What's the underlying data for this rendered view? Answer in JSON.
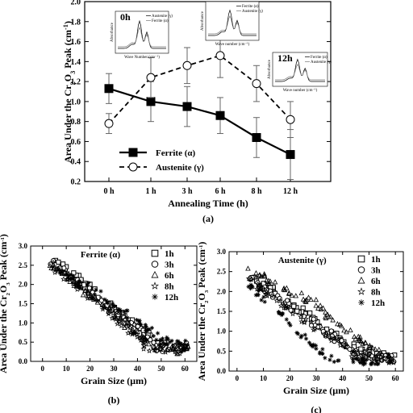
{
  "chart_data": [
    {
      "type": "line",
      "panel_label": "(a)",
      "xlabel": "Annealing Time (h)",
      "ylabel_parts": {
        "pre": "Area Under the Cr",
        "sub1": "2",
        "mid": "O",
        "sub2": "3",
        "post": " Peak (cm",
        "sup": "-1",
        "end": ")"
      },
      "categories": [
        "0 h",
        "1 h",
        "3 h",
        "6 h",
        "8 h",
        "12 h"
      ],
      "ylim": [
        0.2,
        2.0
      ],
      "yticks": [
        "0.2",
        "0.4",
        "0.6",
        "0.8",
        "1.0",
        "1.2",
        "1.4",
        "1.6",
        "1.8",
        "2.0"
      ],
      "series": [
        {
          "name": "Ferrite (α)",
          "marker": "filled-square",
          "line": "solid",
          "values": [
            1.13,
            1.0,
            0.95,
            0.86,
            0.64,
            0.47
          ],
          "errors": [
            0.15,
            0.2,
            0.2,
            0.18,
            0.2,
            0.25
          ]
        },
        {
          "name": "Austenite (γ)",
          "marker": "open-circle",
          "line": "dashed",
          "values": [
            0.78,
            1.24,
            1.36,
            1.46,
            1.18,
            0.82
          ],
          "errors": [
            0.1,
            0.2,
            0.18,
            0.22,
            0.18,
            0.18
          ]
        }
      ],
      "legend_position": "bottom-left",
      "insets": [
        {
          "label": "0h",
          "xlabel": "Wave Number (cm⁻¹)",
          "ylabel": "Absorbance",
          "legend": [
            "Austenite (γ)",
            "Ferrite (α)"
          ]
        },
        {
          "label": "",
          "xlabel": "Wave number (cm⁻¹)",
          "ylabel": "Absorbance",
          "legend": [
            "Ferrite (α)",
            "Austenite (γ)"
          ]
        },
        {
          "label": "12h",
          "xlabel": "Wave number (cm⁻¹)",
          "ylabel": "Absorbance",
          "legend": [
            "Ferrite (α)",
            "Austenite (γ)"
          ]
        }
      ]
    },
    {
      "type": "scatter",
      "panel_label": "(b)",
      "title": "Ferrite (α)",
      "xlabel": "Grain Size (μm)",
      "ylabel_parts": {
        "pre": "Area Under the Cr",
        "sub1": "2",
        "mid": "O",
        "sub2": "3",
        "post": " Peak (cm",
        "sup": "-1",
        "end": ")"
      },
      "xlim": [
        -5,
        65
      ],
      "ylim": [
        0.0,
        3.0
      ],
      "xticks": [
        "0",
        "10",
        "20",
        "30",
        "40",
        "50",
        "60"
      ],
      "yticks": [
        "0.0",
        "0.5",
        "1.0",
        "1.5",
        "2.0",
        "2.5",
        "3.0"
      ],
      "legend_position": "top-right",
      "series": [
        {
          "name": "1h",
          "marker": "square",
          "trend": [
            [
              3,
              2.72
            ],
            [
              35,
              1.15
            ],
            [
              48,
              0.45
            ],
            [
              62,
              0.42
            ]
          ]
        },
        {
          "name": "3h",
          "marker": "circle",
          "trend": [
            [
              3,
              2.62
            ],
            [
              35,
              1.05
            ],
            [
              48,
              0.38
            ],
            [
              62,
              0.38
            ]
          ]
        },
        {
          "name": "6h",
          "marker": "triangle",
          "trend": [
            [
              3,
              2.55
            ],
            [
              35,
              1.0
            ],
            [
              48,
              0.32
            ],
            [
              62,
              0.33
            ]
          ]
        },
        {
          "name": "8h",
          "marker": "star",
          "trend": [
            [
              4,
              2.5
            ],
            [
              35,
              0.9
            ],
            [
              45,
              0.28
            ],
            [
              62,
              0.3
            ]
          ]
        },
        {
          "name": "12h",
          "marker": "asterisk",
          "trend": [
            [
              5,
              2.45
            ],
            [
              38,
              1.2
            ],
            [
              50,
              0.55
            ],
            [
              62,
              0.4
            ]
          ]
        }
      ]
    },
    {
      "type": "scatter",
      "panel_label": "(c)",
      "title": "Austenite (γ)",
      "xlabel": "Grain Size (μm)",
      "ylabel_parts": {
        "pre": "Area Under the Cr",
        "sub1": "2",
        "mid": "O",
        "sub2": "3",
        "post": " Peak (cm",
        "sup": "-1",
        "end": ")"
      },
      "xlim": [
        -3,
        63
      ],
      "ylim": [
        0.0,
        3.0
      ],
      "xticks": [
        "0",
        "10",
        "20",
        "30",
        "40",
        "50",
        "60"
      ],
      "yticks": [
        "0.0",
        "0.5",
        "1.0",
        "1.5",
        "2.0",
        "2.5",
        "3.0"
      ],
      "legend_position": "top-right",
      "series": [
        {
          "name": "1h",
          "marker": "square",
          "trend": [
            [
              4,
              2.45
            ],
            [
              30,
              1.25
            ],
            [
              45,
              0.55
            ],
            [
              60,
              0.32
            ]
          ]
        },
        {
          "name": "3h",
          "marker": "circle",
          "trend": [
            [
              4,
              2.35
            ],
            [
              30,
              1.15
            ],
            [
              45,
              0.45
            ],
            [
              60,
              0.28
            ]
          ]
        },
        {
          "name": "6h",
          "marker": "triangle",
          "trend": [
            [
              4,
              2.55
            ],
            [
              30,
              1.65
            ],
            [
              45,
              0.8
            ],
            [
              60,
              0.3
            ]
          ]
        },
        {
          "name": "8h",
          "marker": "star",
          "trend": [
            [
              4,
              2.3
            ],
            [
              30,
              1.05
            ],
            [
              45,
              0.4
            ],
            [
              60,
              0.25
            ]
          ]
        },
        {
          "name": "12h",
          "marker": "asterisk",
          "trend": [
            [
              4,
              2.15
            ],
            [
              25,
              0.85
            ],
            [
              35,
              0.3
            ],
            [
              55,
              0.2
            ]
          ]
        }
      ]
    }
  ]
}
